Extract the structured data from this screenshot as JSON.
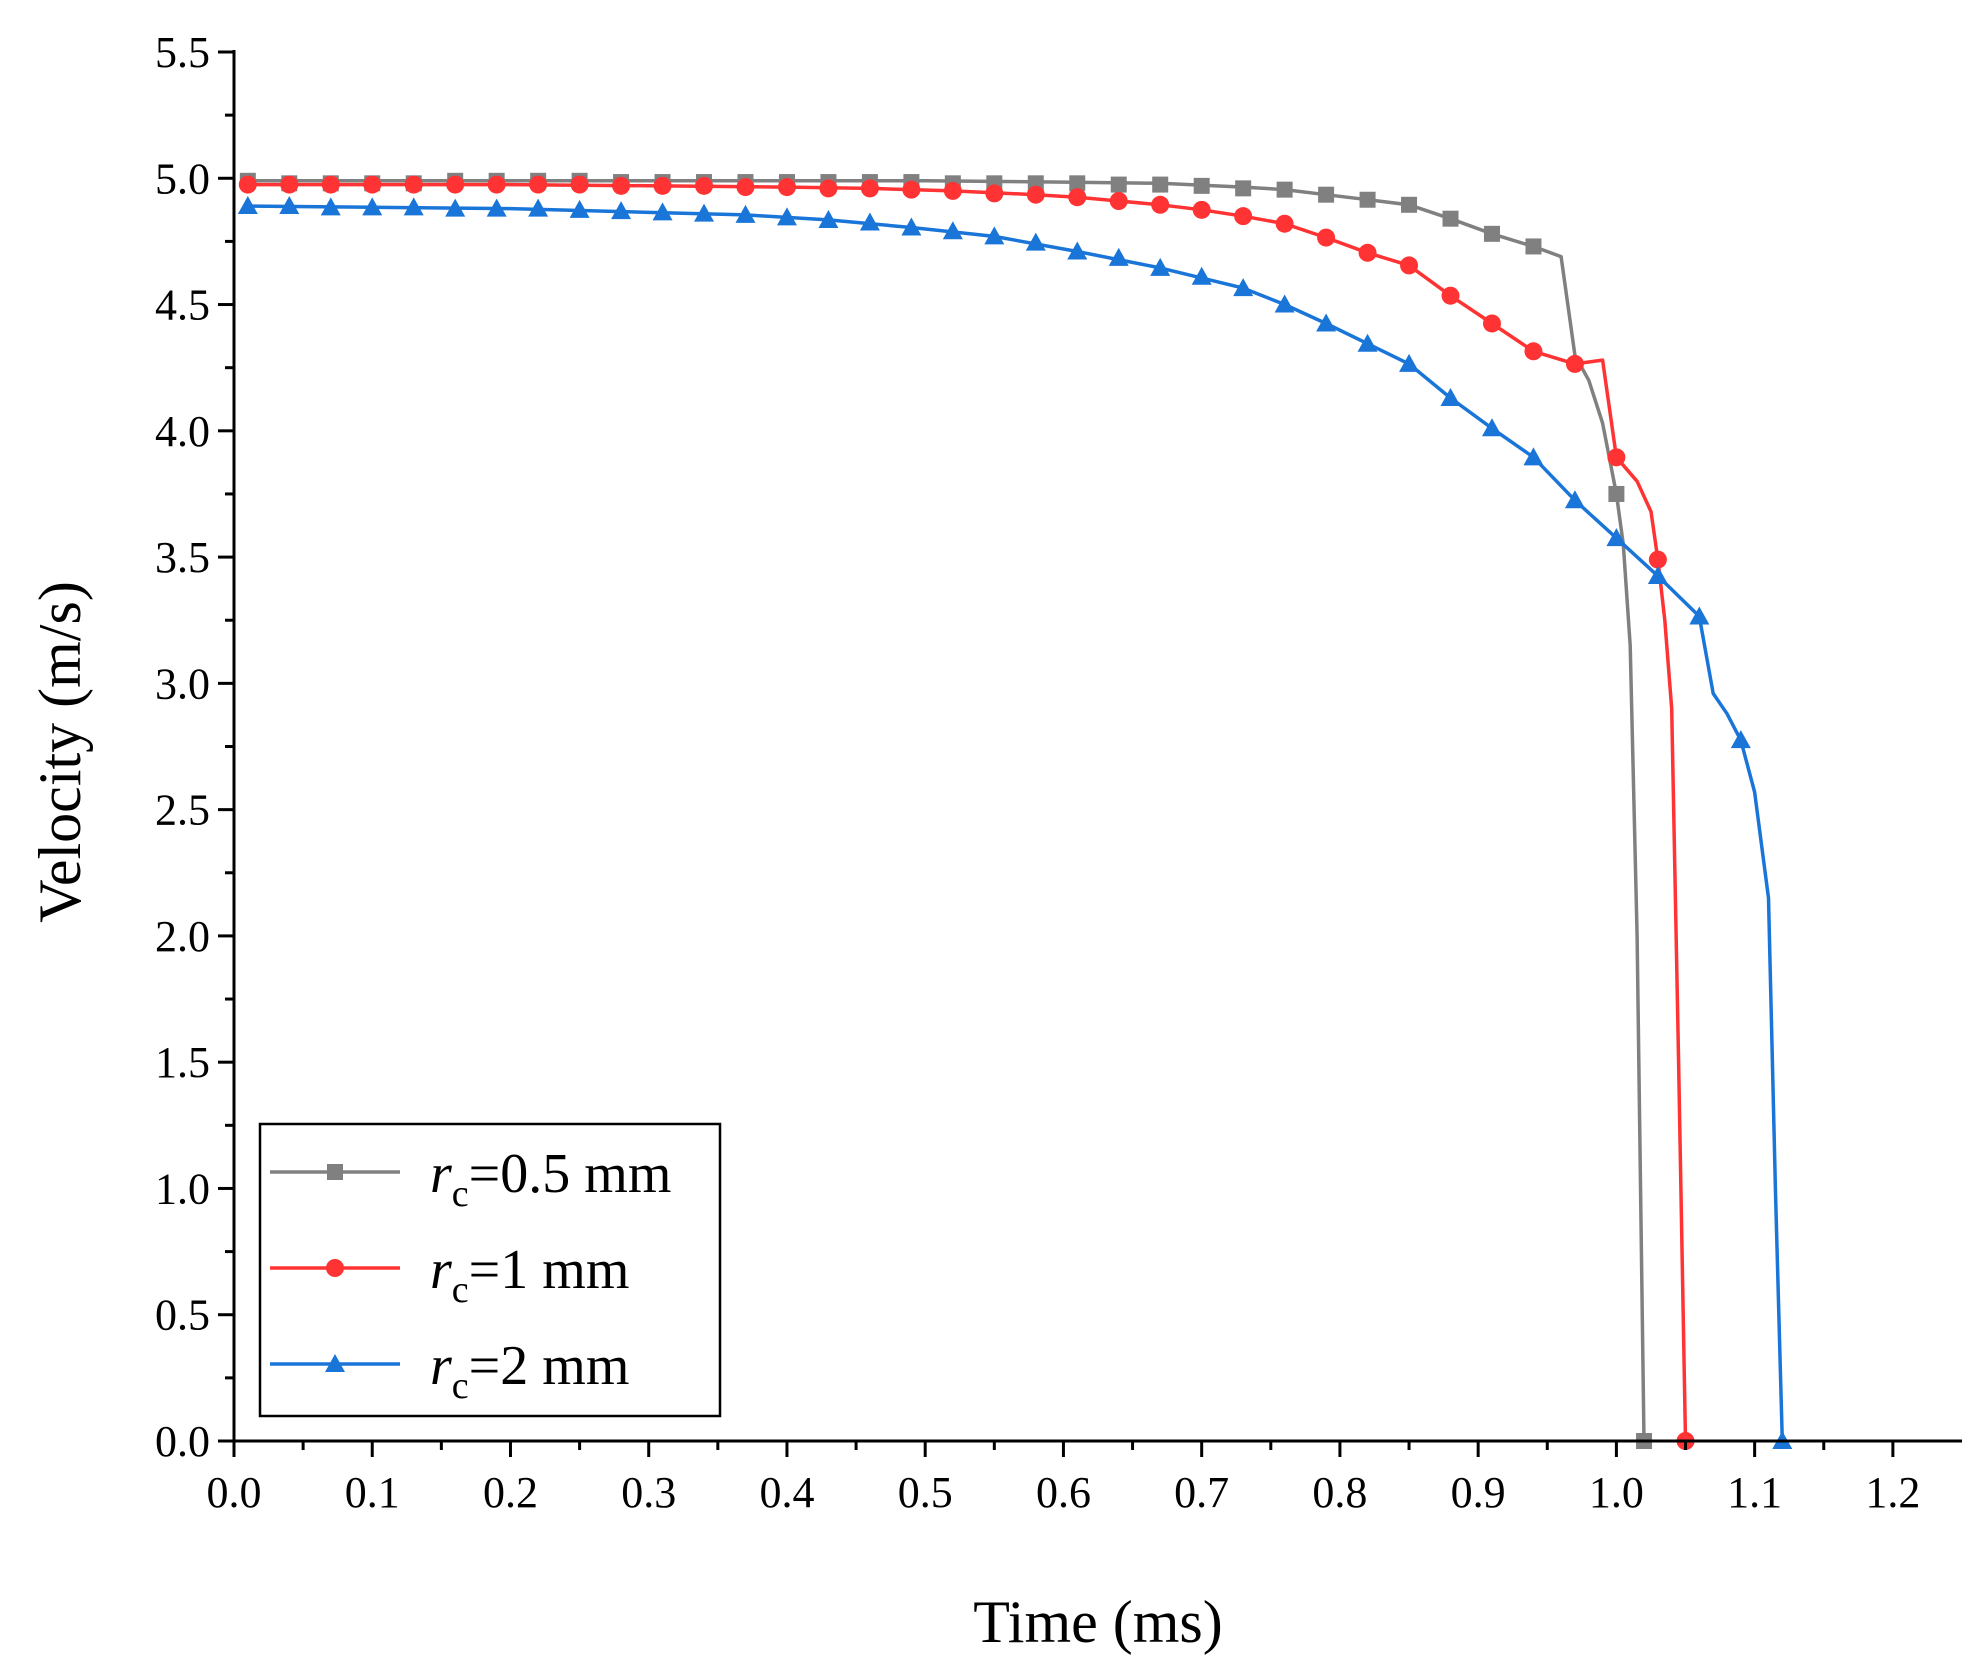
{
  "chart_data": {
    "type": "line",
    "title": "",
    "xlabel": "Time (ms)",
    "ylabel": "Velocity (m/s)",
    "xlim": [
      0,
      1.25
    ],
    "ylim": [
      0,
      5.5
    ],
    "xticks": [
      "0.0",
      "0.1",
      "0.2",
      "0.3",
      "0.4",
      "0.5",
      "0.6",
      "0.7",
      "0.8",
      "0.9",
      "1.0",
      "1.1",
      "1.2"
    ],
    "yticks": [
      "0.0",
      "0.5",
      "1.0",
      "1.5",
      "2.0",
      "2.5",
      "3.0",
      "3.5",
      "4.0",
      "4.5",
      "5.0",
      "5.5"
    ],
    "grid": false,
    "legend_position": "bottom-left",
    "series": [
      {
        "name": "rc=0.5 mm",
        "legend_symbol": "r",
        "legend_subscript": "c",
        "legend_suffix": "=0.5 mm",
        "color": "#808080",
        "marker": "square",
        "line": [
          [
            0.01,
            4.99
          ],
          [
            0.1,
            4.99
          ],
          [
            0.2,
            4.99
          ],
          [
            0.3,
            4.99
          ],
          [
            0.4,
            4.99
          ],
          [
            0.5,
            4.99
          ],
          [
            0.6,
            4.985
          ],
          [
            0.67,
            4.98
          ],
          [
            0.73,
            4.965
          ],
          [
            0.76,
            4.955
          ],
          [
            0.79,
            4.935
          ],
          [
            0.82,
            4.915
          ],
          [
            0.85,
            4.895
          ],
          [
            0.88,
            4.84
          ],
          [
            0.91,
            4.78
          ],
          [
            0.94,
            4.73
          ],
          [
            0.96,
            4.69
          ],
          [
            0.97,
            4.3
          ],
          [
            0.98,
            4.2
          ],
          [
            0.99,
            4.03
          ],
          [
            1.0,
            3.75
          ],
          [
            1.005,
            3.55
          ],
          [
            1.01,
            3.15
          ],
          [
            1.015,
            2.0
          ],
          [
            1.02,
            0.0
          ]
        ],
        "markers": [
          [
            0.01,
            4.99
          ],
          [
            0.04,
            4.98
          ],
          [
            0.07,
            4.98
          ],
          [
            0.1,
            4.98
          ],
          [
            0.13,
            4.98
          ],
          [
            0.16,
            4.99
          ],
          [
            0.19,
            4.99
          ],
          [
            0.22,
            4.99
          ],
          [
            0.25,
            4.99
          ],
          [
            0.28,
            4.985
          ],
          [
            0.31,
            4.985
          ],
          [
            0.34,
            4.985
          ],
          [
            0.37,
            4.985
          ],
          [
            0.4,
            4.985
          ],
          [
            0.43,
            4.985
          ],
          [
            0.46,
            4.985
          ],
          [
            0.49,
            4.985
          ],
          [
            0.52,
            4.98
          ],
          [
            0.55,
            4.98
          ],
          [
            0.58,
            4.98
          ],
          [
            0.61,
            4.98
          ],
          [
            0.64,
            4.975
          ],
          [
            0.67,
            4.975
          ],
          [
            0.7,
            4.97
          ],
          [
            0.73,
            4.96
          ],
          [
            0.76,
            4.955
          ],
          [
            0.79,
            4.935
          ],
          [
            0.82,
            4.915
          ],
          [
            0.85,
            4.895
          ],
          [
            0.88,
            4.84
          ],
          [
            0.91,
            4.78
          ],
          [
            0.94,
            4.73
          ],
          [
            1.0,
            3.75
          ],
          [
            1.02,
            0.0
          ]
        ]
      },
      {
        "name": "rc=1 mm",
        "legend_symbol": "r",
        "legend_subscript": "c",
        "legend_suffix": "=1 mm",
        "color": "#ff3333",
        "marker": "circle",
        "line": [
          [
            0.01,
            4.975
          ],
          [
            0.1,
            4.975
          ],
          [
            0.2,
            4.975
          ],
          [
            0.3,
            4.97
          ],
          [
            0.4,
            4.965
          ],
          [
            0.46,
            4.96
          ],
          [
            0.52,
            4.95
          ],
          [
            0.58,
            4.935
          ],
          [
            0.61,
            4.925
          ],
          [
            0.64,
            4.91
          ],
          [
            0.67,
            4.895
          ],
          [
            0.7,
            4.875
          ],
          [
            0.73,
            4.85
          ],
          [
            0.76,
            4.82
          ],
          [
            0.79,
            4.765
          ],
          [
            0.82,
            4.705
          ],
          [
            0.85,
            4.655
          ],
          [
            0.88,
            4.535
          ],
          [
            0.91,
            4.425
          ],
          [
            0.94,
            4.315
          ],
          [
            0.97,
            4.265
          ],
          [
            0.99,
            4.28
          ],
          [
            1.0,
            3.895
          ],
          [
            1.015,
            3.8
          ],
          [
            1.025,
            3.68
          ],
          [
            1.03,
            3.49
          ],
          [
            1.035,
            3.25
          ],
          [
            1.04,
            2.9
          ],
          [
            1.045,
            1.5
          ],
          [
            1.05,
            0.0
          ]
        ],
        "markers": [
          [
            0.01,
            4.975
          ],
          [
            0.04,
            4.975
          ],
          [
            0.07,
            4.975
          ],
          [
            0.1,
            4.975
          ],
          [
            0.13,
            4.975
          ],
          [
            0.16,
            4.975
          ],
          [
            0.19,
            4.975
          ],
          [
            0.22,
            4.975
          ],
          [
            0.25,
            4.975
          ],
          [
            0.28,
            4.97
          ],
          [
            0.31,
            4.97
          ],
          [
            0.34,
            4.97
          ],
          [
            0.37,
            4.965
          ],
          [
            0.4,
            4.965
          ],
          [
            0.43,
            4.96
          ],
          [
            0.46,
            4.96
          ],
          [
            0.49,
            4.955
          ],
          [
            0.52,
            4.95
          ],
          [
            0.55,
            4.94
          ],
          [
            0.58,
            4.935
          ],
          [
            0.61,
            4.925
          ],
          [
            0.64,
            4.91
          ],
          [
            0.67,
            4.895
          ],
          [
            0.7,
            4.875
          ],
          [
            0.73,
            4.85
          ],
          [
            0.76,
            4.82
          ],
          [
            0.79,
            4.765
          ],
          [
            0.82,
            4.705
          ],
          [
            0.85,
            4.655
          ],
          [
            0.88,
            4.535
          ],
          [
            0.91,
            4.425
          ],
          [
            0.94,
            4.315
          ],
          [
            0.97,
            4.265
          ],
          [
            1.0,
            3.895
          ],
          [
            1.03,
            3.49
          ],
          [
            1.05,
            0.0
          ]
        ]
      },
      {
        "name": "rc=2 mm",
        "legend_symbol": "r",
        "legend_subscript": "c",
        "legend_suffix": "=2 mm",
        "color": "#1a75d9",
        "marker": "triangle",
        "line": [
          [
            0.01,
            4.89
          ],
          [
            0.1,
            4.885
          ],
          [
            0.2,
            4.88
          ],
          [
            0.3,
            4.865
          ],
          [
            0.37,
            4.855
          ],
          [
            0.43,
            4.835
          ],
          [
            0.49,
            4.805
          ],
          [
            0.55,
            4.77
          ],
          [
            0.61,
            4.71
          ],
          [
            0.67,
            4.645
          ],
          [
            0.73,
            4.565
          ],
          [
            0.76,
            4.5
          ],
          [
            0.79,
            4.425
          ],
          [
            0.82,
            4.345
          ],
          [
            0.85,
            4.265
          ],
          [
            0.88,
            4.13
          ],
          [
            0.91,
            4.01
          ],
          [
            0.94,
            3.895
          ],
          [
            0.97,
            3.725
          ],
          [
            1.0,
            3.575
          ],
          [
            1.03,
            3.425
          ],
          [
            1.06,
            3.265
          ],
          [
            1.07,
            2.96
          ],
          [
            1.08,
            2.88
          ],
          [
            1.09,
            2.775
          ],
          [
            1.1,
            2.57
          ],
          [
            1.11,
            2.15
          ],
          [
            1.115,
            1.0
          ],
          [
            1.12,
            0.0
          ]
        ],
        "markers": [
          [
            0.01,
            4.89
          ],
          [
            0.04,
            4.89
          ],
          [
            0.07,
            4.885
          ],
          [
            0.1,
            4.885
          ],
          [
            0.13,
            4.885
          ],
          [
            0.16,
            4.88
          ],
          [
            0.19,
            4.88
          ],
          [
            0.22,
            4.88
          ],
          [
            0.25,
            4.875
          ],
          [
            0.28,
            4.87
          ],
          [
            0.31,
            4.865
          ],
          [
            0.34,
            4.86
          ],
          [
            0.37,
            4.855
          ],
          [
            0.4,
            4.845
          ],
          [
            0.43,
            4.835
          ],
          [
            0.46,
            4.825
          ],
          [
            0.49,
            4.805
          ],
          [
            0.52,
            4.79
          ],
          [
            0.55,
            4.77
          ],
          [
            0.58,
            4.745
          ],
          [
            0.61,
            4.71
          ],
          [
            0.64,
            4.685
          ],
          [
            0.67,
            4.645
          ],
          [
            0.7,
            4.61
          ],
          [
            0.73,
            4.565
          ],
          [
            0.76,
            4.5
          ],
          [
            0.79,
            4.425
          ],
          [
            0.82,
            4.345
          ],
          [
            0.85,
            4.265
          ],
          [
            0.88,
            4.13
          ],
          [
            0.91,
            4.01
          ],
          [
            0.94,
            3.895
          ],
          [
            0.97,
            3.725
          ],
          [
            1.0,
            3.575
          ],
          [
            1.03,
            3.425
          ],
          [
            1.06,
            3.265
          ],
          [
            1.09,
            2.775
          ],
          [
            1.12,
            0.0
          ]
        ]
      }
    ]
  }
}
